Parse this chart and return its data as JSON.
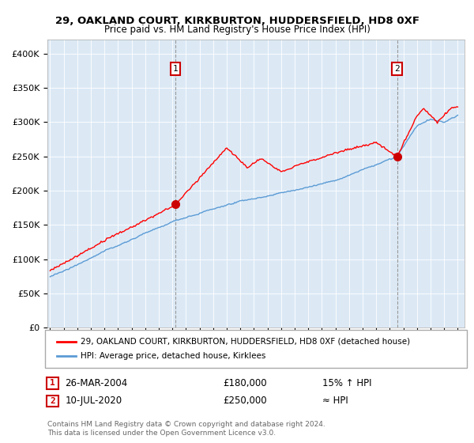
{
  "title": "29, OAKLAND COURT, KIRKBURTON, HUDDERSFIELD, HD8 0XF",
  "subtitle": "Price paid vs. HM Land Registry's House Price Index (HPI)",
  "ylim": [
    0,
    420000
  ],
  "yticks": [
    0,
    50000,
    100000,
    150000,
    200000,
    250000,
    300000,
    350000,
    400000
  ],
  "ytick_labels": [
    "£0",
    "£50K",
    "£100K",
    "£150K",
    "£200K",
    "£250K",
    "£300K",
    "£350K",
    "£400K"
  ],
  "hpi_color": "#5b9bd5",
  "price_color": "#ff0000",
  "annotation_color": "#cc0000",
  "background_color": "#ffffff",
  "plot_bg_color": "#dce9f5",
  "grid_color": "#ffffff",
  "sale1_date": "26-MAR-2004",
  "sale1_price": 180000,
  "sale1_hpi_pct": "15% ↑ HPI",
  "sale2_date": "10-JUL-2020",
  "sale2_price": 250000,
  "sale2_hpi_pct": "≈ HPI",
  "legend_label1": "29, OAKLAND COURT, KIRKBURTON, HUDDERSFIELD, HD8 0XF (detached house)",
  "legend_label2": "HPI: Average price, detached house, Kirklees",
  "footnote": "Contains HM Land Registry data © Crown copyright and database right 2024.\nThis data is licensed under the Open Government Licence v3.0.",
  "sale1_x_year": 2004.23,
  "sale1_y": 180000,
  "sale2_x_year": 2020.53,
  "sale2_y": 250000,
  "xlim_left": 1994.8,
  "xlim_right": 2025.5
}
